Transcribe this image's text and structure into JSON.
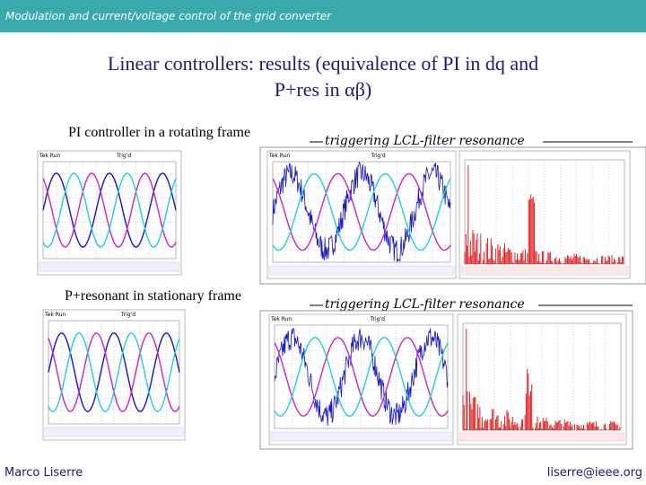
{
  "header": {
    "title": "Modulation and current/voltage control of the grid converter"
  },
  "slide": {
    "title_line1": "Linear controllers: results (equivalence of PI in dq and",
    "title_line2": "P+res in αβ)"
  },
  "rows": [
    {
      "left_caption": "PI controller in a rotating frame",
      "right_caption": "triggering LCL-filter resonance"
    },
    {
      "left_caption": "P+resonant in stationary frame",
      "right_caption": "triggering LCL-filter resonance"
    }
  ],
  "scopes": [
    {
      "status": "Tek Run",
      "trigger": "Trig'd"
    },
    {
      "status": "Tek Run",
      "trigger": "Trig'd"
    },
    {
      "status": "Tek Run",
      "trigger": "Trig'd"
    },
    {
      "status": "Tek Run",
      "trigger": "Trig'd"
    }
  ],
  "footer": {
    "author": "Marco Liserre",
    "email": "liserre@ieee.org"
  }
}
